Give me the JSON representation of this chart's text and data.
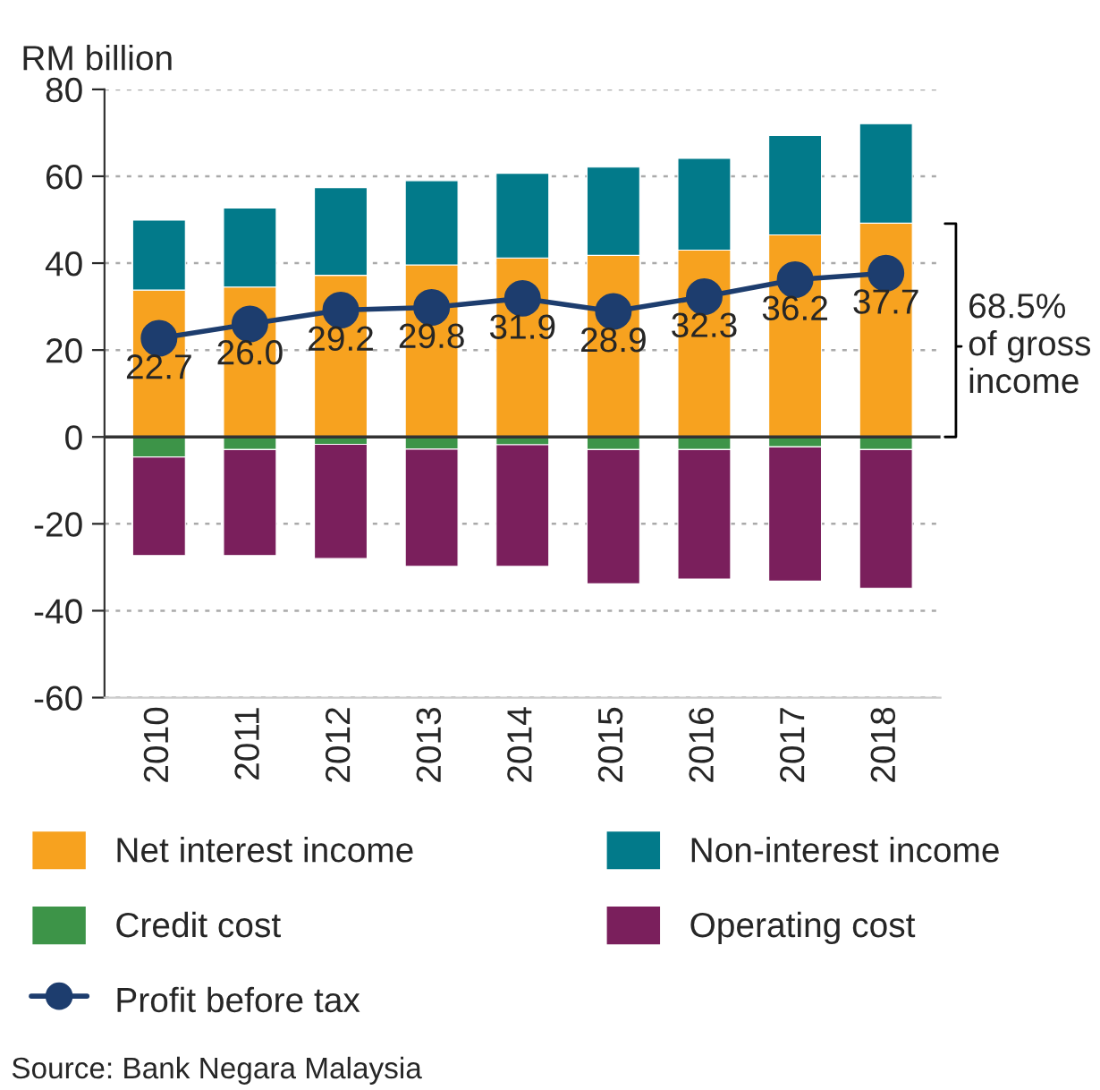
{
  "chart_data": {
    "type": "bar",
    "stacked": true,
    "ylabel": "RM billion",
    "categories": [
      "2010",
      "2011",
      "2012",
      "2013",
      "2014",
      "2015",
      "2016",
      "2017",
      "2018"
    ],
    "series": [
      {
        "name": "Net interest income",
        "color": "#f7a21f",
        "values": [
          33.8,
          34.5,
          37.2,
          39.6,
          41.2,
          41.8,
          43.0,
          46.5,
          49.2
        ]
      },
      {
        "name": "Non-interest income",
        "color": "#027a8a",
        "values": [
          16.1,
          18.2,
          20.2,
          19.4,
          19.5,
          20.3,
          21.1,
          22.9,
          22.9
        ]
      },
      {
        "name": "Credit cost",
        "color": "#3d9448",
        "values": [
          -4.6,
          -2.9,
          -1.7,
          -2.8,
          -1.8,
          -2.9,
          -2.9,
          -2.3,
          -2.9
        ]
      },
      {
        "name": "Operating cost",
        "color": "#7a1f5c",
        "values": [
          -22.7,
          -24.4,
          -26.3,
          -27.0,
          -28.0,
          -30.9,
          -29.8,
          -30.9,
          -31.9
        ]
      },
      {
        "name": "Profit before tax",
        "type": "line",
        "color": "#1d3d6e",
        "marker": "circle",
        "value_labels": [
          "22.7",
          "26.0",
          "29.2",
          "29.8",
          "31.9",
          "28.9",
          "32.3",
          "36.2",
          "37.7"
        ],
        "values": [
          22.7,
          26.0,
          29.2,
          29.8,
          31.9,
          28.9,
          32.3,
          36.2,
          37.7
        ]
      }
    ],
    "ylim": [
      -60,
      80
    ],
    "yticks": [
      -60,
      -40,
      -20,
      0,
      20,
      40,
      60,
      80
    ],
    "grid": "y",
    "legend": "bottom",
    "ref_lines": [
      {
        "axis": "y",
        "value": 0,
        "color": "#333333"
      }
    ],
    "annotations": [
      {
        "text": "68.5%\nof gross\nincome",
        "x": "2018",
        "y": 37.7
      },
      "Source: Bank Negara Malaysia"
    ]
  }
}
